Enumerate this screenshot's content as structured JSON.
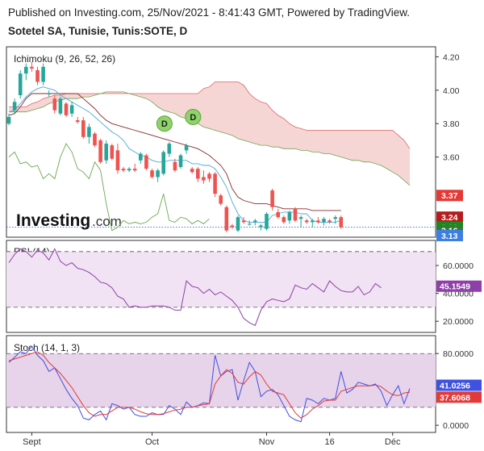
{
  "header": {
    "line1": "Published on Investing.com, 25/Nov/2021 - 8:41:43 GMT, Powered by TradingView.",
    "line2": "Sotetel SA, Tunisie, Tunis:SOTE, D"
  },
  "watermark": {
    "brand": "Investing",
    "suffix": ".com"
  },
  "colors": {
    "up": "#26a69a",
    "down": "#ef5350",
    "tenkan": "#4aa8d8",
    "kijun": "#8b2a2a",
    "chikou": "#6aa84f",
    "spanA": "#6aa84f",
    "spanB": "#e06666",
    "cloud": "#f6d5d5",
    "rsi": "#8e3fa8",
    "rsiBand": "#f1e3f3",
    "stochK": "#3f51e0",
    "stochD": "#e03a3a",
    "stochBand": "#e7d3ea",
    "badgeRed": "#e53935",
    "badgeDarkRed": "#b71c1c",
    "badgeGreen": "#1b8a1b",
    "badgeGreen2": "#2e7d32",
    "badgeBlue": "#3d7fe0",
    "badgePurple": "#8e3fa8"
  },
  "chart_data": [
    {
      "id": "price",
      "type": "candlestick",
      "title": "Ichimoku (9, 26, 52, 26)",
      "ylim": [
        3.12,
        4.26
      ],
      "y_ticks": [
        "4.20",
        "4.00",
        "3.80",
        "3.60"
      ],
      "x_ticks": [
        {
          "label": "Sept",
          "index": 4
        },
        {
          "label": "Oct",
          "index": 25
        },
        {
          "label": "Nov",
          "index": 45
        },
        {
          "label": "16",
          "index": 56
        },
        {
          "label": "Déc",
          "index": 67
        }
      ],
      "candles": [
        [
          3.8,
          3.86,
          3.79,
          3.84
        ],
        [
          3.88,
          3.95,
          3.86,
          3.93
        ],
        [
          3.97,
          4.12,
          3.95,
          4.1
        ],
        [
          4.1,
          4.16,
          4.06,
          4.14
        ],
        [
          4.14,
          4.17,
          4.11,
          4.13
        ],
        [
          4.12,
          4.14,
          4.03,
          4.05
        ],
        [
          4.05,
          4.16,
          4.03,
          4.14
        ],
        [
          3.98,
          4.0,
          3.96,
          3.98
        ],
        [
          3.95,
          3.97,
          3.86,
          3.88
        ],
        [
          3.86,
          3.96,
          3.85,
          3.95
        ],
        [
          3.92,
          3.93,
          3.84,
          3.85
        ],
        [
          3.86,
          3.93,
          3.84,
          3.91
        ],
        [
          3.82,
          3.84,
          3.8,
          3.81
        ],
        [
          3.82,
          3.84,
          3.71,
          3.72
        ],
        [
          3.72,
          3.8,
          3.68,
          3.78
        ],
        [
          3.74,
          3.75,
          3.66,
          3.67
        ],
        [
          3.7,
          3.71,
          3.56,
          3.57
        ],
        [
          3.58,
          3.7,
          3.56,
          3.68
        ],
        [
          3.67,
          3.68,
          3.58,
          3.59
        ],
        [
          3.64,
          3.68,
          3.5,
          3.52
        ],
        [
          3.53,
          3.54,
          3.51,
          3.52
        ],
        [
          3.52,
          3.54,
          3.51,
          3.53
        ],
        [
          3.53,
          3.56,
          3.51,
          3.52
        ],
        [
          3.58,
          3.63,
          3.56,
          3.62
        ],
        [
          3.61,
          3.62,
          3.52,
          3.53
        ],
        [
          3.52,
          3.53,
          3.47,
          3.48
        ],
        [
          3.48,
          3.53,
          3.45,
          3.52
        ],
        [
          3.5,
          3.64,
          3.49,
          3.63
        ],
        [
          3.62,
          3.69,
          3.6,
          3.68
        ],
        [
          3.57,
          3.59,
          3.51,
          3.52
        ],
        [
          3.54,
          3.62,
          3.53,
          3.61
        ],
        [
          3.64,
          3.68,
          3.62,
          3.67
        ],
        [
          3.53,
          3.54,
          3.5,
          3.51
        ],
        [
          3.53,
          3.54,
          3.45,
          3.47
        ],
        [
          3.48,
          3.52,
          3.44,
          3.46
        ],
        [
          3.5,
          3.51,
          3.45,
          3.47
        ],
        [
          3.5,
          3.51,
          3.36,
          3.38
        ],
        [
          3.37,
          3.38,
          3.31,
          3.32
        ],
        [
          3.3,
          3.31,
          3.15,
          3.16
        ],
        [
          3.19,
          3.2,
          3.17,
          3.18
        ],
        [
          3.16,
          3.25,
          3.15,
          3.24
        ],
        [
          3.22,
          3.24,
          3.2,
          3.21
        ],
        [
          3.2,
          3.22,
          3.19,
          3.2
        ],
        [
          3.21,
          3.23,
          3.19,
          3.22
        ],
        [
          3.18,
          3.2,
          3.16,
          3.19
        ],
        [
          3.17,
          3.27,
          3.16,
          3.26
        ],
        [
          3.4,
          3.41,
          3.28,
          3.3
        ],
        [
          3.27,
          3.29,
          3.23,
          3.24
        ],
        [
          3.24,
          3.25,
          3.2,
          3.21
        ],
        [
          3.22,
          3.28,
          3.2,
          3.27
        ],
        [
          3.29,
          3.3,
          3.21,
          3.22
        ],
        [
          3.23,
          3.25,
          3.18,
          3.24
        ],
        [
          3.22,
          3.23,
          3.2,
          3.21
        ],
        [
          3.21,
          3.23,
          3.18,
          3.22
        ],
        [
          3.22,
          3.24,
          3.2,
          3.21
        ],
        [
          3.21,
          3.24,
          3.19,
          3.23
        ],
        [
          3.22,
          3.23,
          3.2,
          3.21
        ],
        [
          3.23,
          3.25,
          3.2,
          3.24
        ],
        [
          3.24,
          3.25,
          3.17,
          3.18
        ]
      ],
      "tenkan": [
        3.87,
        3.88,
        3.92,
        3.96,
        3.99,
        4.01,
        4.02,
        4.01,
        4.0,
        3.97,
        3.95,
        3.93,
        3.91,
        3.89,
        3.87,
        3.84,
        3.81,
        3.78,
        3.75,
        3.73,
        3.7,
        3.65,
        3.63,
        3.61,
        3.6,
        3.58,
        3.57,
        3.57,
        3.58,
        3.58,
        3.58,
        3.58,
        3.56,
        3.56,
        3.55,
        3.55,
        3.53,
        3.48,
        3.42,
        3.33,
        3.26,
        3.22,
        3.21,
        3.21,
        3.21,
        3.21,
        3.25,
        3.26,
        3.27,
        3.27,
        3.27,
        3.26,
        3.26,
        3.22,
        3.21,
        3.21,
        3.21,
        3.21,
        3.22
      ],
      "kijun": [
        3.85,
        3.86,
        3.9,
        3.95,
        3.98,
        3.98,
        3.98,
        3.98,
        3.98,
        3.98,
        3.98,
        3.98,
        3.98,
        3.95,
        3.92,
        3.89,
        3.85,
        3.82,
        3.8,
        3.79,
        3.78,
        3.77,
        3.76,
        3.75,
        3.74,
        3.73,
        3.72,
        3.71,
        3.7,
        3.69,
        3.68,
        3.67,
        3.66,
        3.65,
        3.63,
        3.61,
        3.58,
        3.55,
        3.5,
        3.41,
        3.36,
        3.34,
        3.33,
        3.32,
        3.32,
        3.32,
        3.31,
        3.3,
        3.29,
        3.29,
        3.29,
        3.29,
        3.29,
        3.28,
        3.28,
        3.28,
        3.28,
        3.28,
        3.28
      ],
      "chikou": [
        3.6,
        3.63,
        3.56,
        3.57,
        3.54,
        3.55,
        3.47,
        3.5,
        3.47,
        3.6,
        3.68,
        3.63,
        3.53,
        3.51,
        3.47,
        3.57,
        3.52,
        3.32,
        3.16,
        3.18,
        3.22,
        3.2,
        3.21,
        3.2,
        3.21,
        3.24,
        3.26,
        3.38,
        3.22,
        3.21,
        3.24,
        3.23,
        3.2,
        3.22,
        3.2,
        3.23
      ],
      "spanA": [
        3.87,
        3.87,
        3.87,
        3.87,
        3.88,
        3.89,
        3.9,
        3.92,
        3.93,
        3.94,
        3.95,
        3.95,
        3.95,
        3.96,
        3.96,
        3.97,
        3.98,
        3.99,
        3.99,
        3.99,
        3.99,
        3.98,
        3.97,
        3.96,
        3.95,
        3.93,
        3.9,
        3.88,
        3.87,
        3.86,
        3.84,
        3.83,
        3.82,
        3.8,
        3.78,
        3.77,
        3.76,
        3.75,
        3.74,
        3.73,
        3.71,
        3.7,
        3.69,
        3.68,
        3.67,
        3.67,
        3.66,
        3.66,
        3.65,
        3.65,
        3.65,
        3.64,
        3.64,
        3.63,
        3.63,
        3.62,
        3.62,
        3.61,
        3.6,
        3.59,
        3.58,
        3.58,
        3.57,
        3.57,
        3.56,
        3.55,
        3.53,
        3.51,
        3.49,
        3.46,
        3.43
      ],
      "spanB": [
        3.9,
        3.9,
        3.9,
        3.9,
        3.92,
        3.93,
        3.95,
        3.96,
        3.97,
        3.97,
        3.98,
        3.98,
        3.98,
        3.98,
        3.98,
        3.98,
        3.98,
        3.98,
        3.98,
        3.98,
        3.98,
        3.98,
        3.98,
        3.98,
        3.98,
        3.98,
        3.98,
        3.98,
        3.98,
        3.98,
        3.98,
        3.98,
        3.98,
        3.98,
        4.01,
        4.02,
        4.05,
        4.05,
        4.05,
        4.05,
        4.05,
        4.03,
        3.98,
        3.95,
        3.93,
        3.92,
        3.88,
        3.85,
        3.83,
        3.8,
        3.78,
        3.77,
        3.76,
        3.76,
        3.76,
        3.76,
        3.76,
        3.76,
        3.76,
        3.76,
        3.76,
        3.76,
        3.76,
        3.76,
        3.76,
        3.76,
        3.76,
        3.76,
        3.73,
        3.7,
        3.65
      ],
      "dividend_markers": [
        {
          "label": "D",
          "index": 29,
          "value": 3.8
        },
        {
          "label": "D",
          "index": 33,
          "value": 3.84
        }
      ],
      "price_badges": [
        {
          "label": "3.37",
          "value": 3.37,
          "color": "#e53935"
        },
        {
          "label": "3.24",
          "value": 3.24,
          "color": "#b71c1c"
        },
        {
          "label": "3.18",
          "value": 3.18,
          "color": "#1b8a1b"
        },
        {
          "label": "3.16",
          "value": 3.16,
          "color": "#2e7d32"
        },
        {
          "label": "3.16",
          "value": 3.12,
          "color": "#3d7fe0"
        },
        {
          "label": "3.13",
          "value": 3.08,
          "color": "#3d7fe0"
        }
      ],
      "last_price": 3.18
    },
    {
      "id": "rsi",
      "type": "line",
      "title": "RSI (14)",
      "ylim": [
        12,
        78
      ],
      "y_ticks": [
        "60.0000",
        "40.0000",
        "20.0000"
      ],
      "band": [
        30,
        70
      ],
      "series": [
        {
          "name": "",
          "values": [
            62,
            68,
            72,
            70,
            66,
            71,
            69,
            64,
            72,
            63,
            60,
            62,
            58,
            57,
            55,
            52,
            48,
            47,
            44,
            38,
            36,
            30,
            31,
            30,
            30,
            31,
            31,
            31,
            30,
            28,
            28,
            49,
            45,
            44,
            40,
            43,
            39,
            41,
            38,
            35,
            30,
            22,
            19,
            17,
            28,
            34,
            36,
            35,
            34,
            36,
            46,
            44,
            43,
            47,
            44,
            41,
            49,
            45,
            42,
            41,
            41,
            45,
            39,
            41,
            47,
            44
          ]
        }
      ],
      "last_value": "45.1549"
    },
    {
      "id": "stoch",
      "type": "line",
      "title": "Stoch (14, 1, 3)",
      "ylim": [
        -8,
        100
      ],
      "y_ticks": [
        "80.0000",
        "0.0000"
      ],
      "band": [
        20,
        80
      ],
      "series": [
        {
          "name": "",
          "values": [
            70,
            76,
            82,
            80,
            88,
            78,
            72,
            60,
            64,
            52,
            40,
            30,
            22,
            8,
            6,
            12,
            16,
            6,
            24,
            22,
            18,
            20,
            12,
            10,
            10,
            14,
            12,
            12,
            22,
            18,
            12,
            26,
            20,
            22,
            25,
            24,
            78,
            55,
            60,
            62,
            28,
            50,
            70,
            60,
            32,
            38,
            40,
            34,
            22,
            10,
            6,
            4,
            30,
            28,
            24,
            30,
            28,
            30,
            60,
            36,
            40,
            48,
            46,
            44,
            46,
            38,
            22,
            34,
            44,
            24,
            41
          ]
        },
        {
          "name": "",
          "values": [
            72,
            74,
            76,
            78,
            80,
            82,
            78,
            70,
            64,
            58,
            50,
            42,
            32,
            22,
            14,
            10,
            12,
            12,
            16,
            20,
            20,
            20,
            18,
            15,
            13,
            12,
            12,
            13,
            15,
            17,
            18,
            20,
            20,
            22,
            23,
            24,
            46,
            55,
            62,
            58,
            48,
            46,
            54,
            60,
            56,
            46,
            38,
            36,
            34,
            24,
            14,
            8,
            12,
            18,
            22,
            27,
            28,
            28,
            38,
            40,
            42,
            44,
            44,
            44,
            45,
            43,
            38,
            34,
            33,
            36,
            37
          ]
        }
      ],
      "last_values": [
        "41.0256",
        "37.6068"
      ]
    }
  ]
}
